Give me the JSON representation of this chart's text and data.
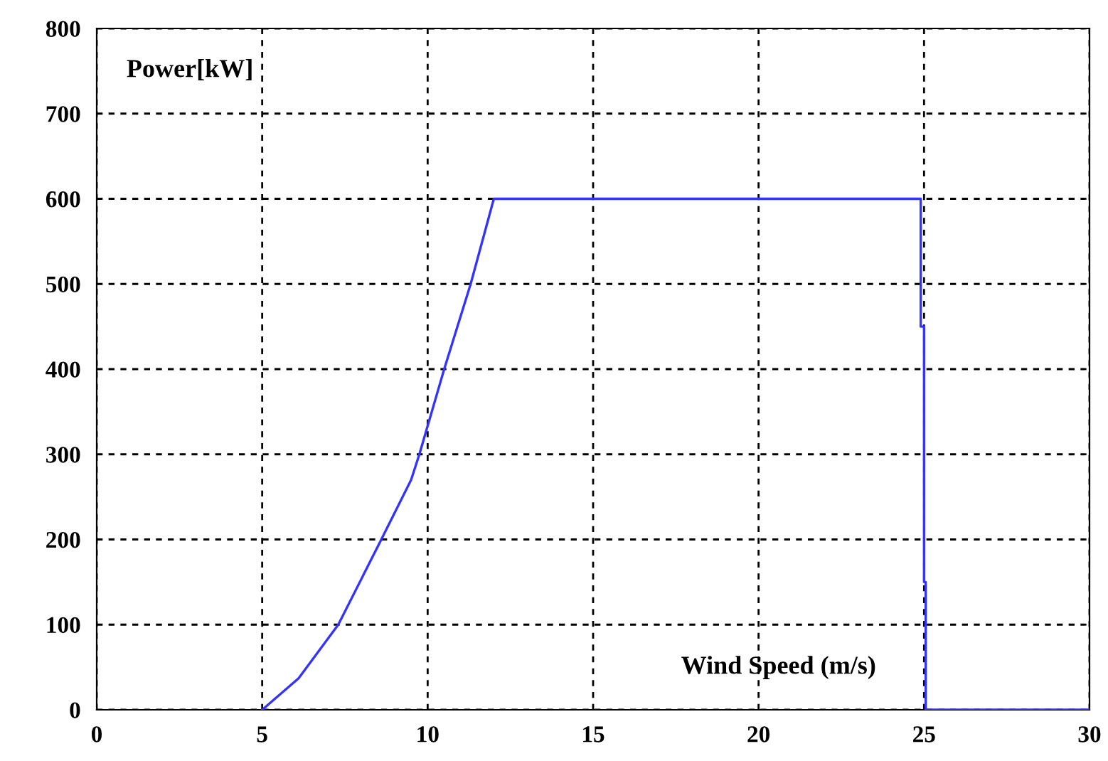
{
  "chart_data": {
    "type": "line",
    "xlabel": "Wind Speed (m/s)",
    "ylabel": "Power[kW]",
    "xlim": [
      0,
      30
    ],
    "xticks": [
      0,
      5,
      10,
      15,
      20,
      25,
      30
    ],
    "ylim": [
      0,
      800
    ],
    "yticks": [
      0,
      100,
      200,
      300,
      400,
      500,
      600,
      700,
      800
    ],
    "grid": true,
    "marker": "none",
    "line_style": "solid",
    "series": [
      {
        "color": "#3333ff",
        "x": [
          5,
          6.1,
          7.3,
          8.6,
          9.5,
          9.75,
          10.5,
          11.3,
          12,
          24.9,
          24.9,
          25.0,
          25.0,
          25.05,
          25.05,
          30
        ],
        "values": [
          0,
          37,
          100,
          200,
          270,
          300,
          400,
          500,
          600,
          600,
          450,
          450,
          150,
          150,
          0,
          0
        ]
      }
    ]
  }
}
